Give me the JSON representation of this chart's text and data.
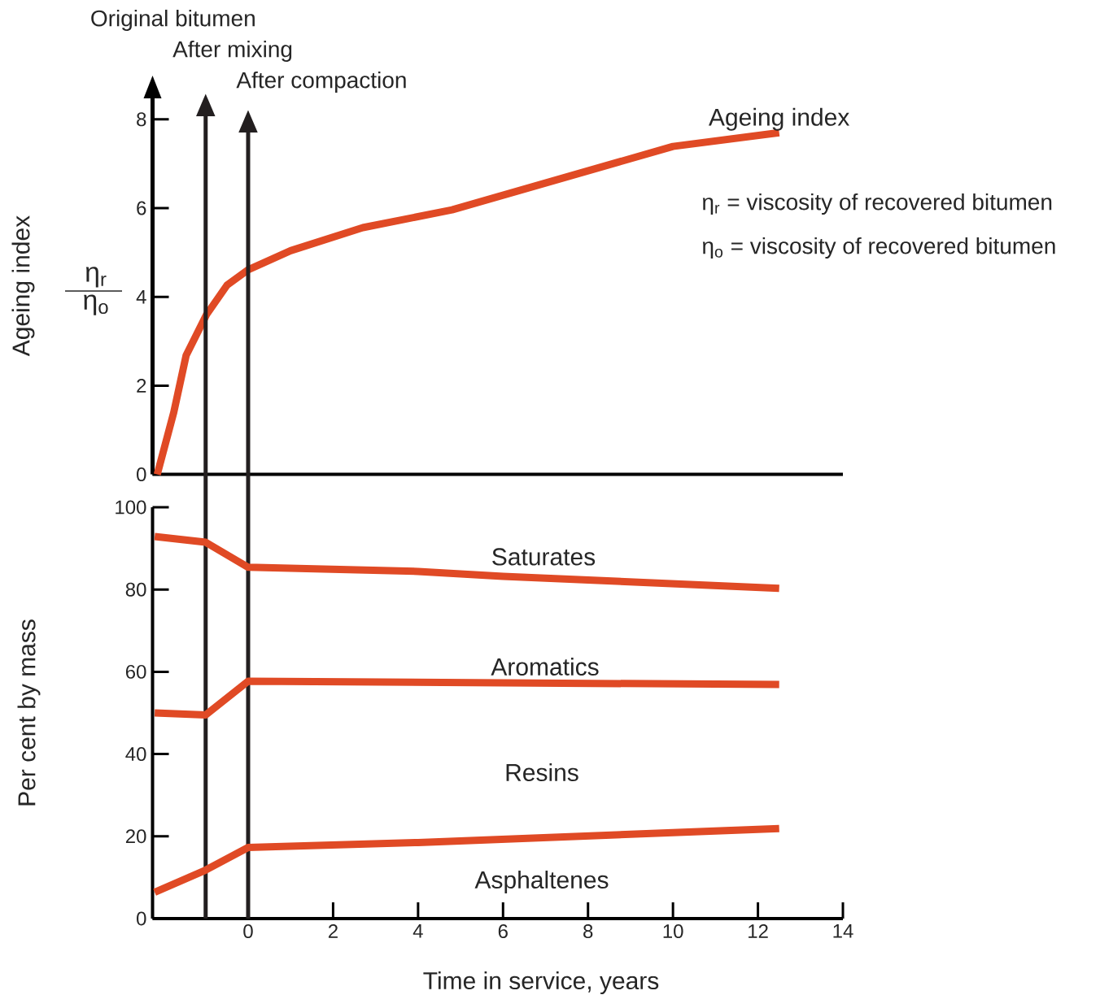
{
  "chart_data": [
    {
      "type": "line",
      "ylabel": "Ageing index",
      "xlim": [
        -2.25,
        14
      ],
      "ylim": [
        0,
        8.5
      ],
      "yticks": [
        0,
        2,
        4,
        6,
        8
      ],
      "tick_labels": "y",
      "series": [
        {
          "name": "Ageing index",
          "color": "#e04a25",
          "x": [
            -2.14,
            -1.75,
            -1.46,
            -0.98,
            -0.5,
            0,
            1,
            2.7,
            4.8,
            10,
            12.5
          ],
          "values": [
            0,
            1.4,
            2.68,
            3.6,
            4.26,
            4.61,
            5.04,
            5.56,
            5.96,
            7.39,
            7.7
          ]
        }
      ],
      "annotations": [
        "Original bitumen",
        "η$_{r}$ = viscosity of recovered bitumen",
        "η$_{o}$ = viscosity of recovered bitumen",
        "η$_{r}$",
        "η$_{o}$"
      ]
    },
    {
      "type": "line",
      "xlabel": "Time in service, years",
      "ylabel": "Per cent by mass",
      "xlim": [
        -2.25,
        14
      ],
      "xticks": [
        0,
        2,
        4,
        6,
        8,
        10,
        12,
        14
      ],
      "ylim": [
        0,
        100
      ],
      "yticks": [
        0,
        20,
        40,
        60,
        80,
        100
      ],
      "series": [
        {
          "color": "#e04a25",
          "x": [
            -2.2,
            -1,
            0,
            4,
            6,
            12.5
          ],
          "values": [
            92.9,
            91.5,
            85.4,
            84.4,
            83.2,
            80.3
          ]
        },
        {
          "color": "#e04a25",
          "x": [
            -2.2,
            -1,
            0,
            12.5
          ],
          "values": [
            50,
            49.5,
            57.7,
            56.9
          ]
        },
        {
          "color": "#e04a25",
          "x": [
            -2.2,
            -1,
            0,
            4,
            12.5
          ],
          "values": [
            6.4,
            11.8,
            17.3,
            18.5,
            21.9
          ]
        }
      ],
      "ref_lines": [
        {
          "axis": "x",
          "value": -1,
          "label": "After mixing",
          "color": "#231f20"
        },
        {
          "axis": "x",
          "value": 0,
          "label": "After compaction",
          "color": "#231f20"
        }
      ],
      "annotations": [
        "Saturates",
        "Aromatics",
        "Resins",
        "Asphaltenes"
      ]
    }
  ]
}
